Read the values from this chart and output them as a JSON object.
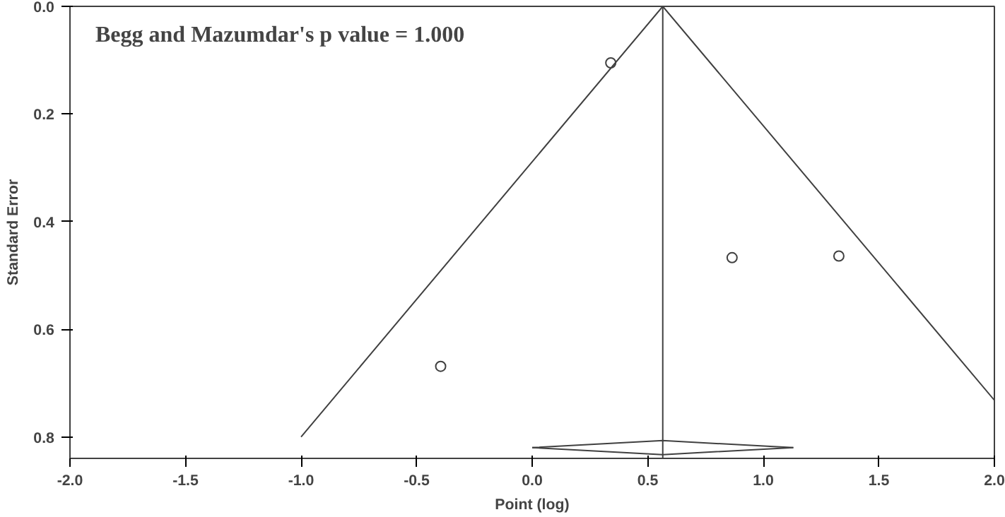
{
  "chart_data": {
    "type": "scatter",
    "xlabel": "Point (log)",
    "ylabel": "Standard Error",
    "annotations": [
      "Begg and Mazumdar's p value = 1.000"
    ],
    "series": [
      {
        "color": "#404040",
        "x": [
          0.34,
          0.865,
          1.327,
          -0.396
        ],
        "values": [
          0.105,
          0.467,
          0.464,
          0.669
        ]
      },
      {
        "type": "line",
        "marker": "none",
        "color": "#404040",
        "x": [
          -1.0,
          0.565,
          2.0
        ],
        "values": [
          0.8,
          0.0,
          0.732
        ]
      },
      {
        "type": "line",
        "marker": "none",
        "color": "#404040",
        "x": [
          0.0,
          0.565,
          1.13
        ],
        "values": [
          0.82,
          0.807,
          0.82
        ]
      },
      {
        "type": "line",
        "marker": "none",
        "color": "#404040",
        "x": [
          0.0,
          0.565,
          1.13
        ],
        "values": [
          0.82,
          0.833,
          0.82
        ]
      }
    ],
    "ref_lines": [
      {
        "axis": "x",
        "value": 0.565,
        "color": "#404040"
      }
    ],
    "marker": "circle",
    "grid": false,
    "xlim": [
      -2.0,
      2.0
    ],
    "ylim": [
      0.84,
      0.0
    ],
    "xticks": [
      {
        "value": -2.0,
        "label": "-2.0"
      },
      {
        "value": -1.5,
        "label": "-1.5"
      },
      {
        "value": -1.0,
        "label": "-1.0"
      },
      {
        "value": -0.5,
        "label": "-0.5"
      },
      {
        "value": 0.0,
        "label": "0.0"
      },
      {
        "value": 0.5,
        "label": "0.5"
      },
      {
        "value": 1.0,
        "label": "1.0"
      },
      {
        "value": 1.5,
        "label": "1.5"
      },
      {
        "value": 2.0,
        "label": "2.0"
      }
    ],
    "yticks": [
      {
        "value": 0.0,
        "label": "0.0"
      },
      {
        "value": 0.2,
        "label": "0.2"
      },
      {
        "value": 0.4,
        "label": "0.4"
      },
      {
        "value": 0.6,
        "label": "0.6"
      },
      {
        "value": 0.8,
        "label": "0.8"
      }
    ]
  }
}
